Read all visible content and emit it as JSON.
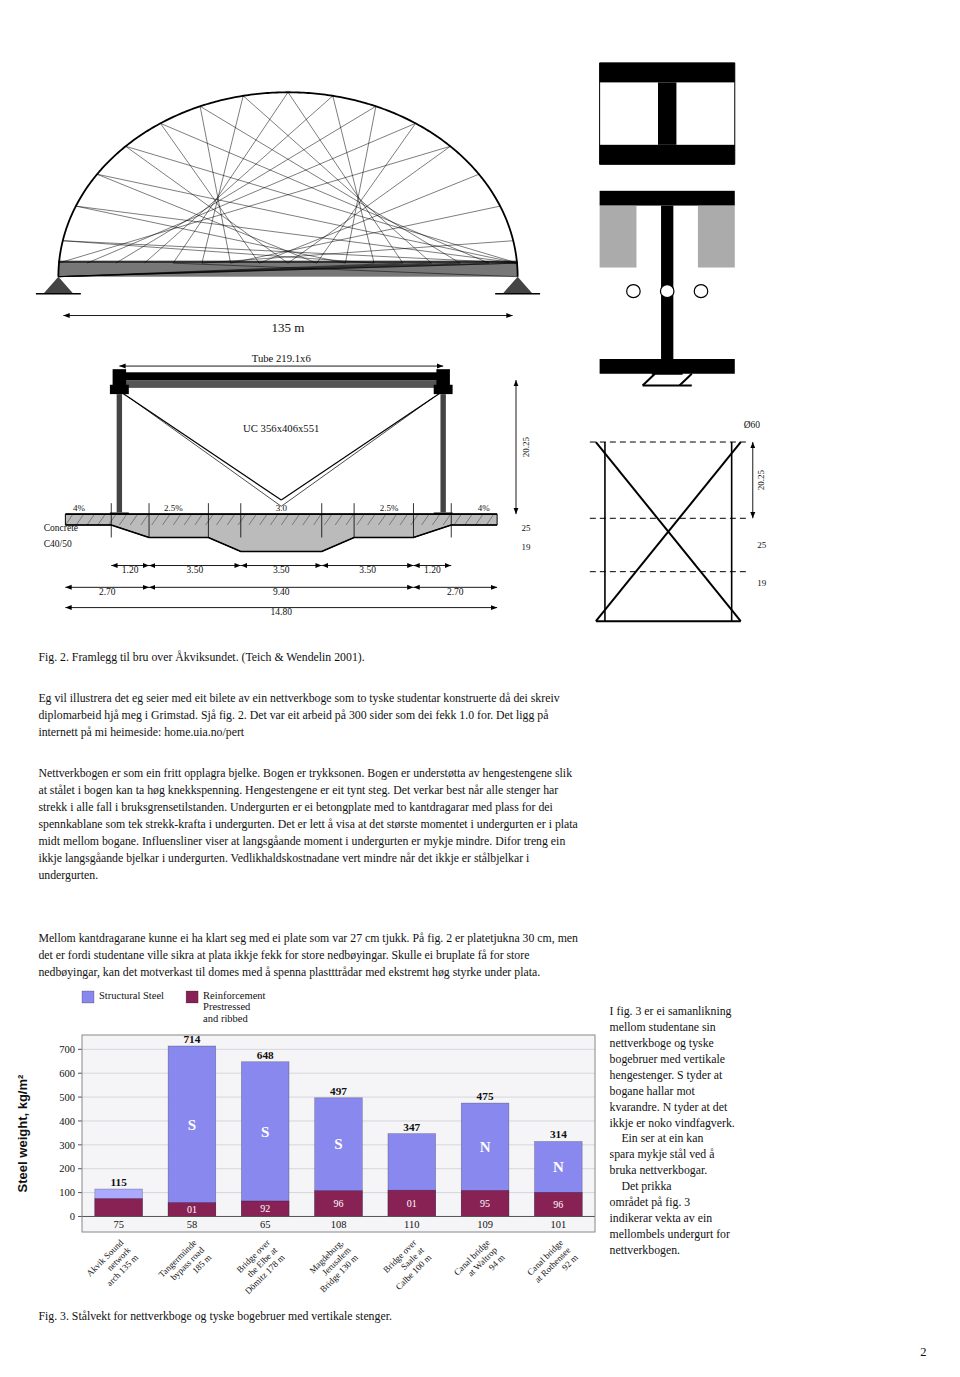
{
  "page": {
    "fig2_caption": "Fig. 2. Framlegg til bru over Åkviksundet. (Teich & Wendelin 2001).",
    "para1": "Eg vil illustrera det eg seier med eit bilete av ein nettverkboge som to tyske studentar konstruerte då dei skreiv\ndiplomarbeid hjå meg i Grimstad. Sjå fig. 2. Det var eit arbeid på 300 sider som dei fekk 1.0 for. Det ligg på\ninternett på mi heimeside: home.uia.no/pert",
    "para2": "Nettverkbogen er som ein fritt opplagra bjelke. Bogen er trykksonen. Bogen er understøtta av hengestengene slik\nat stålet i bogen kan ta høg knekkspenning. Hengestengene er eit tynt steg. Det verkar best når alle stenger har\nstrekk i alle fall i bruksgrensetilstanden. Undergurten er ei betongplate med to kantdragarar med plass for dei\nspennkablane som tek strekk-krafta i undergurten. Det er lett å visa at det største momentet i undergurten er i plata\nmidt mellom bogane. Influensliner viser at langsgåande moment i undergurten er mykje mindre. Difor treng ein\nikkje langsgåande bjelkar i undergurten. Vedlikhaldskostnadane vert mindre når det ikkje er stålbjelkar i\nundergurten.",
    "para3": "Mellom kantdragarane kunne ei ha klart seg med ei plate som var 27 cm tjukk. På fig. 2 er platetjukna 30 cm, men\ndet er fordi studentane ville sikra at plata ikkje fekk for store nedbøyingar. Skulle ei bruplate få for store\nnedbøyingar, kan det motverkast til domes med å spenna plastttrådar med ekstremt høg styrke under plata.",
    "right_text1": "I fig. 3 er ei samanlikning\nmellom studentane sin\nnettverkboge og tyske\nbogebruer med vertikale\nhengestenger. S tyder at\nbogane hallar mot\nkvarandre. N tyder at det\nikkje er noko vindfagverk.",
    "right_text2": "    Ein ser at ein kan\nspara mykje stål ved å\nbruka nettverkbogar.",
    "right_text3": "    Det prikka\nområdet på fig. 3\nindikerar vekta av ein\nmellombels undergurt for\nnettverkbogen.",
    "page_number": "2"
  },
  "drawings": {
    "elevation": [
      "135 m"
    ],
    "cross_section": [
      "Tube 219.1x6",
      "UC 356x406x551",
      "4%",
      "2.5%",
      "3.0",
      "2.5%",
      "4%",
      "Concrete",
      "C40/50",
      "1.20",
      "3.50",
      "3.50",
      "3.50",
      "1.20",
      "2.70",
      "9.40",
      "2.70",
      "14.80",
      "20.25",
      "25",
      "19"
    ],
    "detail": [
      "20.25",
      "25",
      "19",
      "Ø60"
    ]
  },
  "chart_data": {
    "type": "bar",
    "title": "Fig. 3. Stålvekt for nettverkboge og tyske bogebruer med vertikale stenger.",
    "ylabel": "Steel weight, kg/m²",
    "categories": [
      "Akvik Sound\nnetwork\narch 135 m",
      "Tangermünde\nbypass road\n185 m",
      "Bridge over\nthe Elbe at\nDömitz 178 m",
      "Magdeburg,\nJerusalem\nBridge 130 m",
      "Bridge over\nSaale at\nCalbe 100 m",
      "Canal bridge\nat Waltrop\n94 m",
      "Canal bridge\nat Rothensee\n92 m"
    ],
    "series": [
      {
        "name": "Structural Steel",
        "color": "#8888ee",
        "colors": [
          "#aaaaff",
          "#8888ee",
          "#8888ee",
          "#8888ee",
          "#8888ee",
          "#8888ee",
          "#8888ee"
        ],
        "values": [
          115,
          714,
          648,
          497,
          347,
          475,
          314
        ],
        "inner_labels": [
          null,
          "S",
          "S",
          "S",
          null,
          "N",
          "N"
        ]
      },
      {
        "name": "Reinforcement\nPrestressed\nand ribbed",
        "color": "#882255",
        "values": [
          75,
          58,
          65,
          108,
          110,
          109,
          101
        ],
        "inner_labels": [
          null,
          "01",
          "92",
          "96",
          "01",
          "95",
          "96"
        ]
      }
    ],
    "stacked": false,
    "data_labels": true,
    "legend": "upper left",
    "grid": true,
    "ylim": [
      -65,
      760
    ],
    "yticks": [
      0,
      100,
      200,
      300,
      400,
      500,
      600,
      700
    ]
  }
}
